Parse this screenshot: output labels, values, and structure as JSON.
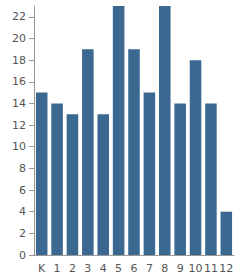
{
  "chart_data": {
    "type": "bar",
    "categories": [
      "K",
      "1",
      "2",
      "3",
      "4",
      "5",
      "6",
      "7",
      "8",
      "9",
      "10",
      "11",
      "12"
    ],
    "values": [
      15,
      14,
      13,
      19,
      13,
      23,
      19,
      15,
      23,
      14,
      18,
      14,
      4
    ],
    "color": "#3b6890",
    "ylim": [
      0,
      23
    ],
    "yticks": [
      0,
      2,
      4,
      6,
      8,
      10,
      12,
      14,
      16,
      18,
      20,
      22
    ],
    "grid": false
  }
}
